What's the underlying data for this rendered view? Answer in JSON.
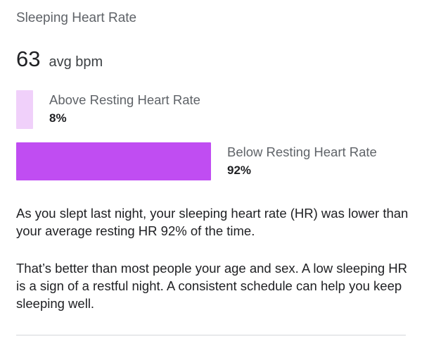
{
  "card": {
    "title": "Sleeping Heart Rate",
    "avg_value": "63",
    "avg_unit": "avg bpm"
  },
  "breakdown": [
    {
      "label": "Above Resting Heart Rate",
      "percent_text": "8%",
      "percent": 8,
      "color": "#f0d0fa"
    },
    {
      "label": "Below Resting Heart Rate",
      "percent_text": "92%",
      "percent": 92,
      "color": "#c04df2"
    }
  ],
  "description": {
    "paragraph1": "As you slept last night, your sleeping heart rate (HR) was lower than your average resting HR 92% of the time.",
    "paragraph2": "That’s better than most people your age and sex. A low sleeping HR is a sign of a restful night. A consistent schedule can help you keep sleeping well."
  }
}
